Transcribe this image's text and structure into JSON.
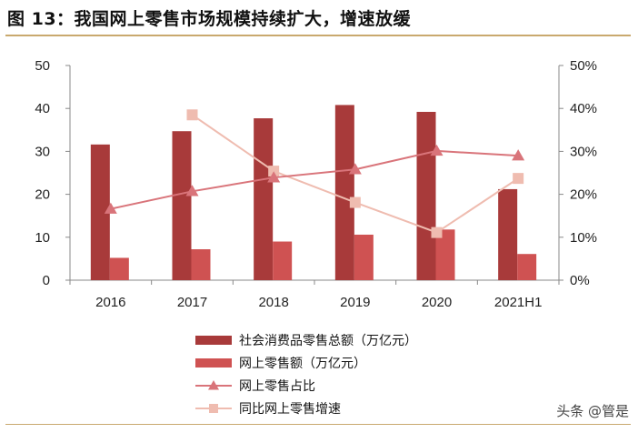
{
  "figure": {
    "title": "图 13：我国网上零售市场规模持续扩大，增速放缓",
    "watermark": "头条 @管是"
  },
  "colors": {
    "total_bar": "#a83a3a",
    "online_bar": "#cf5252",
    "share_line": "#d9747a",
    "growth_line": "#efbcb0",
    "rule": "#c9a96e"
  },
  "chart_data": {
    "type": "bar",
    "categories": [
      "2016",
      "2017",
      "2018",
      "2019",
      "2020",
      "2021H1"
    ],
    "left_axis": {
      "min": 0,
      "max": 50,
      "ticks": [
        0,
        10,
        20,
        30,
        40,
        50
      ],
      "labels": [
        "0",
        "10",
        "20",
        "30",
        "40",
        "50"
      ]
    },
    "right_axis": {
      "min": 0,
      "max": 50,
      "ticks": [
        0,
        10,
        20,
        30,
        40,
        50
      ],
      "labels": [
        "0%",
        "10%",
        "20%",
        "30%",
        "40%",
        "50%"
      ]
    },
    "series": [
      {
        "name": "社会消费品零售总额（万亿元）",
        "kind": "bar",
        "axis": "left",
        "values": [
          31.6,
          34.7,
          37.7,
          40.8,
          39.2,
          21.2
        ]
      },
      {
        "name": "网上零售额（万亿元）",
        "kind": "bar",
        "axis": "left",
        "values": [
          5.2,
          7.2,
          9.0,
          10.6,
          11.8,
          6.1
        ]
      },
      {
        "name": "网上零售占比",
        "kind": "line",
        "marker": "triangle",
        "axis": "right",
        "values": [
          16.6,
          20.7,
          23.9,
          25.8,
          30.1,
          29.0
        ]
      },
      {
        "name": "同比网上零售增速",
        "kind": "line",
        "marker": "square",
        "axis": "right",
        "values": [
          null,
          38.5,
          25.4,
          18.1,
          11.1,
          23.7
        ]
      }
    ],
    "legend_position": "bottom",
    "grid": false
  }
}
